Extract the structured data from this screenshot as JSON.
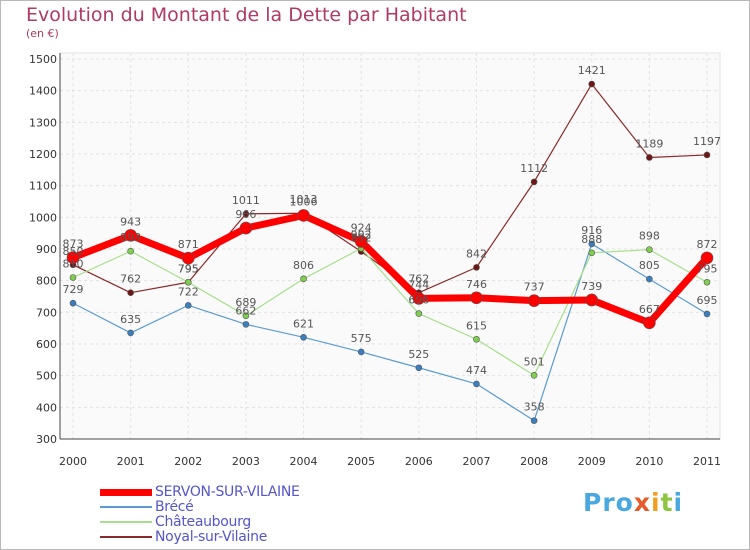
{
  "chart_data": {
    "type": "line",
    "title": "Evolution du Montant de la Dette par Habitant",
    "subtitle": "(en €)",
    "categories": [
      "2000",
      "2001",
      "2002",
      "2003",
      "2004",
      "2005",
      "2006",
      "2007",
      "2008",
      "2009",
      "2010",
      "2011"
    ],
    "ylim": [
      300,
      1500
    ],
    "yticks": [
      300,
      400,
      500,
      600,
      700,
      800,
      900,
      1000,
      1100,
      1200,
      1300,
      1400,
      1500
    ],
    "grid": true,
    "legend_position": "bottom-left",
    "series": [
      {
        "name": "Noyal-sur-Vilaine",
        "color": "#8b2a2a",
        "pointColor": "#6e1515",
        "width": 1.2,
        "radius": 3,
        "values": [
          850,
          762,
          795,
          1011,
          1013,
          892,
          762,
          842,
          1112,
          1421,
          1189,
          1197
        ]
      },
      {
        "name": "Brécé",
        "color": "#5b9bd0",
        "pointColor": "#3a7fc0",
        "width": 1.2,
        "radius": 3,
        "values": [
          729,
          635,
          722,
          662,
          621,
          575,
          525,
          474,
          358,
          916,
          805,
          695
        ]
      },
      {
        "name": "Châteaubourg",
        "color": "#a6e08a",
        "pointColor": "#7fcf4f",
        "width": 1.2,
        "radius": 3,
        "values": [
          810,
          893,
          795,
          689,
          806,
          902,
          696,
          615,
          501,
          888,
          898,
          795
        ]
      },
      {
        "name": "SERVON-SUR-VILAINE",
        "color": "#ff0000",
        "pointColor": "#ff0000",
        "width": 7,
        "radius": 6,
        "values": [
          873,
          943,
          871,
          966,
          1006,
          924,
          744,
          746,
          737,
          739,
          667,
          872
        ]
      }
    ]
  },
  "legend": {
    "items": [
      {
        "label": "SERVON-SUR-VILAINE",
        "color": "#ff0000",
        "thickness": 7
      },
      {
        "label": "Brécé",
        "color": "#5b9bd0",
        "thickness": 2
      },
      {
        "label": "Châteaubourg",
        "color": "#a6e08a",
        "thickness": 2
      },
      {
        "label": "Noyal-sur-Vilaine",
        "color": "#8b2a2a",
        "thickness": 2
      }
    ]
  },
  "brand": {
    "letters": [
      {
        "ch": "P",
        "color": "#4aa8e0"
      },
      {
        "ch": "r",
        "color": "#4aa8e0"
      },
      {
        "ch": "o",
        "color": "#4aa8e0"
      },
      {
        "ch": "x",
        "color": "#e85a2a"
      },
      {
        "ch": "i",
        "color": "#f0a020"
      },
      {
        "ch": "t",
        "color": "#8cc63f"
      },
      {
        "ch": "i",
        "color": "#4aa8e0"
      }
    ]
  }
}
